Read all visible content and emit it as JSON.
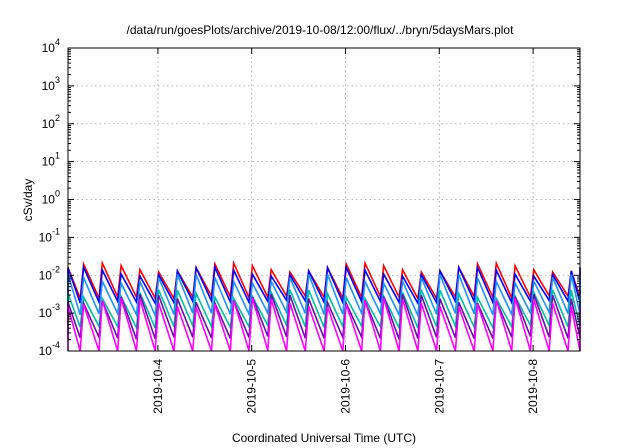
{
  "chart_data": {
    "type": "line",
    "title": "/data/run/goesPlots/archive/2019-10-08/12:00/flux/../bryn/5daysMars.plot",
    "xlabel": "Coordinated Universal Time (UTC)",
    "ylabel": "cSv/day",
    "yscale": "log",
    "ylim": [
      0.0001,
      10000
    ],
    "y_ticks": [
      {
        "value": 0.0001,
        "base": "10",
        "exp": "-4"
      },
      {
        "value": 0.001,
        "base": "10",
        "exp": "-3"
      },
      {
        "value": 0.01,
        "base": "10",
        "exp": "-2"
      },
      {
        "value": 0.1,
        "base": "10",
        "exp": "-1"
      },
      {
        "value": 1,
        "base": "10",
        "exp": "0"
      },
      {
        "value": 10,
        "base": "10",
        "exp": "1"
      },
      {
        "value": 100,
        "base": "10",
        "exp": "2"
      },
      {
        "value": 1000,
        "base": "10",
        "exp": "3"
      },
      {
        "value": 10000,
        "base": "10",
        "exp": "4"
      }
    ],
    "x_range_days": [
      "2019-10-03T01:00",
      "2019-10-08T12:00"
    ],
    "x_ticks": [
      {
        "date": "2019-10-04T00:00",
        "label": "2019-10-4"
      },
      {
        "date": "2019-10-05T00:00",
        "label": "2019-10-5"
      },
      {
        "date": "2019-10-06T00:00",
        "label": "2019-10-6"
      },
      {
        "date": "2019-10-07T00:00",
        "label": "2019-10-7"
      },
      {
        "date": "2019-10-08T00:00",
        "label": "2019-10-8"
      }
    ],
    "grid": true,
    "legend": "none",
    "cycle_hours": 4.8,
    "series": [
      {
        "color": "#ff0000",
        "peak": 0.016,
        "trough": 0.0033
      },
      {
        "color": "#0000ff",
        "peak": 0.0125,
        "trough": 0.0025
      },
      {
        "color": "#1e90ff",
        "peak": 0.0082,
        "trough": 0.0012
      },
      {
        "color": "#00c0a0",
        "peak": 0.0032,
        "trough": 0.00055
      },
      {
        "color": "#6a0dad",
        "peak": 0.0024,
        "trough": 0.00028
      },
      {
        "color": "#ff00ff",
        "peak": 0.0019,
        "trough": 0.00012
      }
    ]
  }
}
